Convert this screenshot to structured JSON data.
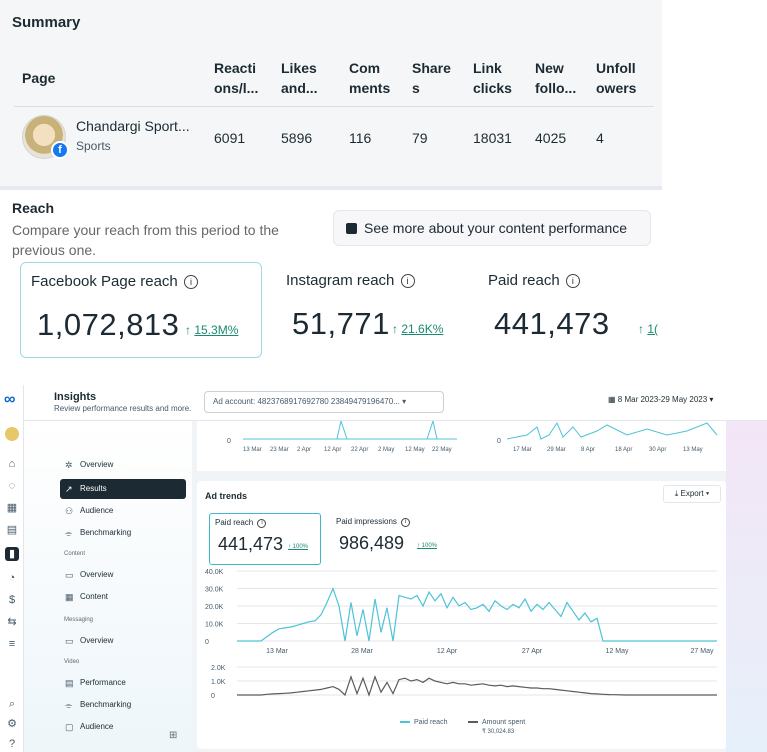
{
  "summary": {
    "title": "Summary",
    "columns": [
      "Page",
      "Reacti\nons/l...",
      "Likes\nand...",
      "Com\nments",
      "Share\ns",
      "Link\nclicks",
      "New\nfollo...",
      "Unfoll\nowers"
    ],
    "row": {
      "page_name": "Chandargi Sport...",
      "category": "Sports",
      "values": [
        "6091",
        "5896",
        "116",
        "79",
        "18031",
        "4025",
        "4"
      ]
    }
  },
  "reach": {
    "title": "Reach",
    "description": "Compare your reach from this period to the previous one.",
    "see_more_label": "See more about your content performance",
    "cards": [
      {
        "label": "Facebook Page reach",
        "value": "1,072,813",
        "delta": "15.3M%"
      },
      {
        "label": "Instagram reach",
        "value": "51,771",
        "delta": "21.6K%"
      },
      {
        "label": "Paid reach",
        "value": "441,473",
        "delta": "1("
      }
    ]
  },
  "insights": {
    "title": "Insights",
    "subtitle": "Review performance results and more.",
    "ad_account": "Ad account: 4823768917692780 23849479196470...",
    "date_range": "8 Mar 2023-29 May 2023",
    "sidebar": {
      "items": [
        {
          "label": "Overview",
          "icon": "sparkle-icon"
        },
        {
          "label": "Results",
          "icon": "trend-icon"
        },
        {
          "label": "Audience",
          "icon": "people-icon"
        },
        {
          "label": "Benchmarking",
          "icon": "benchmark-icon"
        }
      ],
      "sections": [
        {
          "title": "Content",
          "items": [
            {
              "label": "Overview",
              "icon": "page-icon"
            },
            {
              "label": "Content",
              "icon": "grid-icon"
            }
          ]
        },
        {
          "title": "Messaging",
          "items": [
            {
              "label": "Overview",
              "icon": "page-icon"
            }
          ]
        },
        {
          "title": "Video",
          "items": [
            {
              "label": "Performance",
              "icon": "doc-icon"
            },
            {
              "label": "Benchmarking",
              "icon": "benchmark-icon"
            },
            {
              "label": "Audience",
              "icon": "video-icon"
            }
          ]
        }
      ]
    },
    "top_chart_ticks_left": [
      "13 Mar",
      "23 Mar",
      "2 Apr",
      "12 Apr",
      "22 Apr",
      "2 May",
      "12 May",
      "22 May"
    ],
    "top_chart_ticks_right": [
      "17 Mar",
      "29 Mar",
      "8 Apr",
      "18 Apr",
      "30 Apr",
      "13 May"
    ],
    "ad_trends": {
      "title": "Ad trends",
      "export_label": "Export",
      "kpis": [
        {
          "label": "Paid reach",
          "value": "441,473",
          "delta": "100%"
        },
        {
          "label": "Paid impressions",
          "value": "986,489",
          "delta": "100%"
        }
      ]
    },
    "legend": {
      "paid_reach": "Paid reach",
      "amount_spent": "Amount spent",
      "amount_total": "₹ 30,024.83"
    }
  },
  "chart_data": {
    "type": "line",
    "x_ticks": [
      "13 Mar",
      "28 Mar",
      "12 Apr",
      "27 Apr",
      "12 May",
      "27 May"
    ],
    "y_ticks_top": [
      "40.0K",
      "30.0K",
      "20.0K",
      "10.0K",
      "0"
    ],
    "y_ticks_bottom": [
      "2.0K",
      "1.0K",
      "0"
    ],
    "ylim_top": [
      0,
      40000
    ],
    "ylim_bottom": [
      0,
      2000
    ],
    "series": [
      {
        "name": "Paid reach",
        "color": "#4dc3d8",
        "values": [
          0,
          0,
          0,
          0,
          0,
          2500,
          5000,
          7000,
          7500,
          8000,
          9000,
          10000,
          11000,
          11500,
          15000,
          22000,
          30000,
          20000,
          0,
          22000,
          3000,
          18000,
          0,
          24000,
          5000,
          19000,
          0,
          26000,
          25000,
          24000,
          26000,
          20000,
          28000,
          23000,
          27000,
          19000,
          25000,
          20000,
          22000,
          18000,
          19000,
          21000,
          17000,
          23000,
          20000,
          18000,
          21000,
          19000,
          24000,
          17000,
          21000,
          18000,
          22000,
          18000,
          14000,
          22000,
          17000,
          12000,
          16000,
          11000,
          13000,
          0,
          0,
          0,
          0,
          0,
          0,
          0,
          0,
          0,
          0,
          0,
          0,
          0,
          0,
          0,
          0,
          0,
          0,
          0,
          0
        ]
      },
      {
        "name": "Amount spent",
        "color": "#5b5b5b",
        "values": [
          0,
          0,
          0,
          0,
          0,
          50,
          80,
          100,
          120,
          150,
          200,
          250,
          300,
          350,
          400,
          500,
          600,
          400,
          0,
          1300,
          100,
          1200,
          0,
          1300,
          200,
          900,
          100,
          1100,
          1200,
          1000,
          1100,
          900,
          1200,
          1000,
          900,
          800,
          900,
          800,
          800,
          700,
          750,
          800,
          700,
          650,
          700,
          600,
          650,
          600,
          550,
          500,
          500,
          450,
          450,
          400,
          350,
          300,
          250,
          200,
          150,
          100,
          80,
          50,
          30,
          20,
          10,
          0,
          0,
          0,
          0,
          0,
          0,
          0,
          0,
          0,
          0,
          0,
          0,
          0,
          0,
          0,
          0
        ]
      }
    ]
  }
}
